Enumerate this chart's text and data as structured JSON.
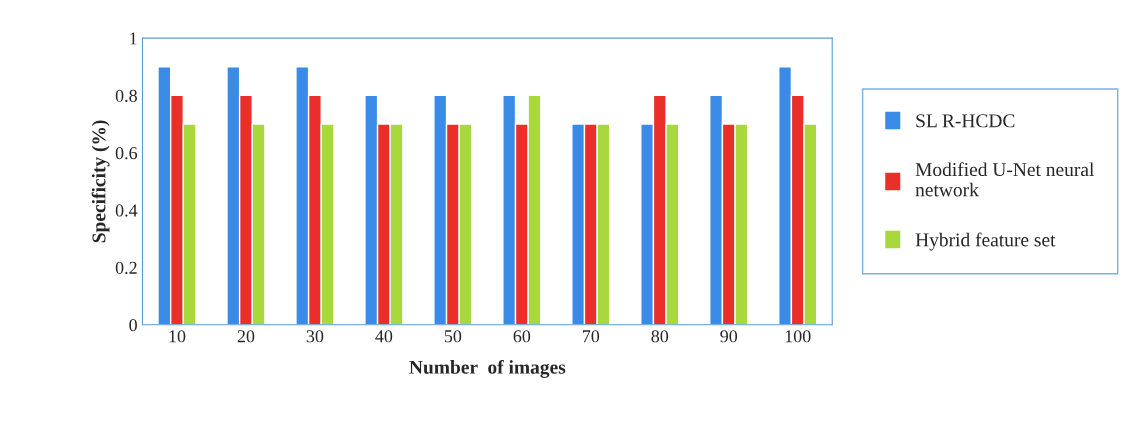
{
  "chart_data": {
    "type": "bar",
    "xlabel": "Number  of images",
    "ylabel": "Specificity (%)",
    "categories": [
      "10",
      "20",
      "30",
      "40",
      "50",
      "60",
      "70",
      "80",
      "90",
      "100"
    ],
    "series": [
      {
        "name": "SL R-HCDC",
        "color": "#3a8ae8",
        "values": [
          0.9,
          0.9,
          0.9,
          0.8,
          0.8,
          0.8,
          0.7,
          0.7,
          0.8,
          0.9
        ]
      },
      {
        "name": "Modified U-Net neural network",
        "color": "#ea2f2a",
        "values": [
          0.8,
          0.8,
          0.8,
          0.7,
          0.7,
          0.7,
          0.7,
          0.8,
          0.7,
          0.8
        ]
      },
      {
        "name": "Hybrid feature set",
        "color": "#a8d83c",
        "values": [
          0.7,
          0.7,
          0.7,
          0.7,
          0.7,
          0.8,
          0.7,
          0.7,
          0.7,
          0.7
        ]
      }
    ],
    "ylim": [
      0,
      1
    ],
    "yticks": [
      0,
      0.2,
      0.4,
      0.6,
      0.8,
      1
    ],
    "grid": false,
    "legend": "right"
  }
}
